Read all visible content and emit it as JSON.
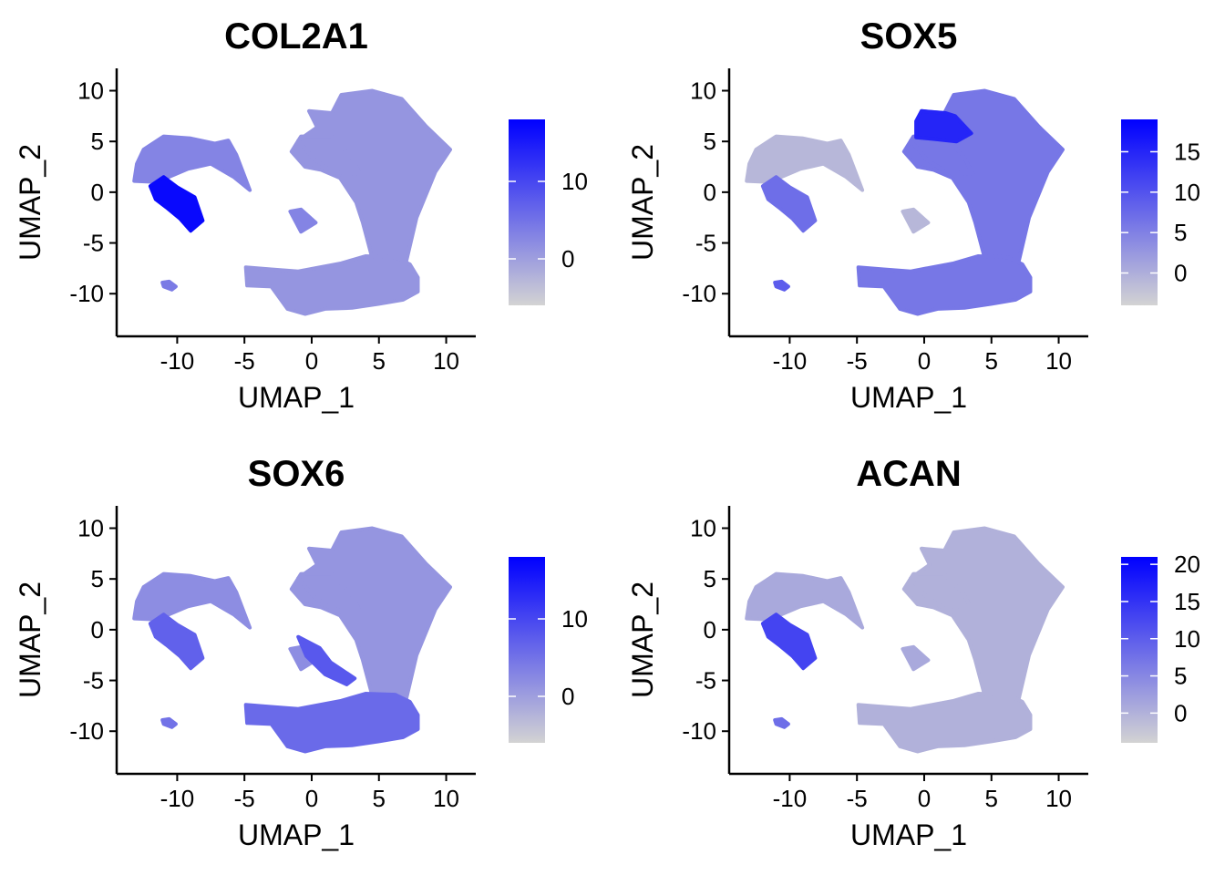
{
  "colors": {
    "low": "#d3d3d3",
    "high": "#0000ff",
    "axis": "#000000",
    "background": "#ffffff"
  },
  "chart_data": [
    {
      "type": "scatter",
      "title": "COL2A1",
      "xlabel": "UMAP_1",
      "ylabel": "UMAP_2",
      "xlim": [
        -14.5,
        12.2
      ],
      "ylim": [
        -14.2,
        12.2
      ],
      "xticks": [
        -10,
        -5,
        0,
        5,
        10
      ],
      "yticks": [
        10,
        5,
        0,
        -5,
        -10
      ],
      "xtick_labels": [
        "-10",
        "-5",
        "0",
        "5",
        "10"
      ],
      "ytick_labels": [
        "10",
        "5",
        "0",
        "-5",
        "-10"
      ],
      "colorbar": {
        "min": -6,
        "max": 18,
        "ticks": [
          10,
          0
        ],
        "tick_labels": [
          "10",
          "0"
        ]
      },
      "grid": false,
      "legend": "right",
      "clusters": [
        {
          "cluster": "upper-left island",
          "expression": 3
        },
        {
          "cluster": "left island core",
          "expression": 17
        },
        {
          "cluster": "top-right mass",
          "expression": 1
        },
        {
          "cluster": "bottom mass",
          "expression": 1
        },
        {
          "cluster": "small isolated cluster",
          "expression": 4
        }
      ]
    },
    {
      "type": "scatter",
      "title": "SOX5",
      "xlabel": "UMAP_1",
      "ylabel": "UMAP_2",
      "xlim": [
        -14.5,
        12.2
      ],
      "ylim": [
        -14.2,
        12.2
      ],
      "xticks": [
        -10,
        -5,
        0,
        5,
        10
      ],
      "yticks": [
        10,
        5,
        0,
        -5,
        -10
      ],
      "xtick_labels": [
        "-10",
        "-5",
        "0",
        "5",
        "10"
      ],
      "ytick_labels": [
        "10",
        "5",
        "0",
        "-5",
        "-10"
      ],
      "colorbar": {
        "min": -4,
        "max": 19,
        "ticks": [
          15,
          10,
          5,
          0
        ],
        "tick_labels": [
          "15",
          "10",
          "5",
          "0"
        ]
      },
      "grid": false,
      "legend": "right",
      "clusters": [
        {
          "cluster": "upper-left island",
          "expression": -1
        },
        {
          "cluster": "left island core",
          "expression": 7
        },
        {
          "cluster": "top-right mass",
          "expression": 6
        },
        {
          "cluster": "top-right upper-left lobe",
          "expression": 15
        },
        {
          "cluster": "bottom mass",
          "expression": 6
        },
        {
          "cluster": "small isolated cluster",
          "expression": 9
        }
      ]
    },
    {
      "type": "scatter",
      "title": "SOX6",
      "xlabel": "UMAP_1",
      "ylabel": "UMAP_2",
      "xlim": [
        -14.5,
        12.2
      ],
      "ylim": [
        -14.2,
        12.2
      ],
      "xticks": [
        -10,
        -5,
        0,
        5,
        10
      ],
      "yticks": [
        10,
        5,
        0,
        -5,
        -10
      ],
      "xtick_labels": [
        "-10",
        "-5",
        "0",
        "5",
        "10"
      ],
      "ytick_labels": [
        "10",
        "5",
        "0",
        "-5",
        "-10"
      ],
      "colorbar": {
        "min": -6,
        "max": 18,
        "ticks": [
          10,
          0
        ],
        "tick_labels": [
          "10",
          "0"
        ]
      },
      "grid": false,
      "legend": "right",
      "clusters": [
        {
          "cluster": "upper-left island",
          "expression": 2
        },
        {
          "cluster": "left island core",
          "expression": 7
        },
        {
          "cluster": "top-right mass",
          "expression": 1
        },
        {
          "cluster": "bridge cells",
          "expression": 8
        },
        {
          "cluster": "bottom mass",
          "expression": 6
        },
        {
          "cluster": "small isolated cluster",
          "expression": 5
        }
      ]
    },
    {
      "type": "scatter",
      "title": "ACAN",
      "xlabel": "UMAP_1",
      "ylabel": "UMAP_2",
      "xlim": [
        -14.5,
        12.2
      ],
      "ylim": [
        -14.2,
        12.2
      ],
      "xticks": [
        -10,
        -5,
        0,
        5,
        10
      ],
      "yticks": [
        10,
        5,
        0,
        -5,
        -10
      ],
      "xtick_labels": [
        "-10",
        "-5",
        "0",
        "5",
        "10"
      ],
      "ytick_labels": [
        "10",
        "5",
        "0",
        "-5",
        "-10"
      ],
      "colorbar": {
        "min": -4,
        "max": 21,
        "ticks": [
          20,
          15,
          10,
          5,
          0
        ],
        "tick_labels": [
          "20",
          "15",
          "10",
          "5",
          "0"
        ]
      },
      "grid": false,
      "legend": "right",
      "clusters": [
        {
          "cluster": "upper-left island",
          "expression": 1
        },
        {
          "cluster": "left island core",
          "expression": 13
        },
        {
          "cluster": "top-right mass",
          "expression": 0
        },
        {
          "cluster": "bottom mass",
          "expression": 0
        },
        {
          "cluster": "small isolated cluster",
          "expression": 8
        }
      ]
    }
  ]
}
